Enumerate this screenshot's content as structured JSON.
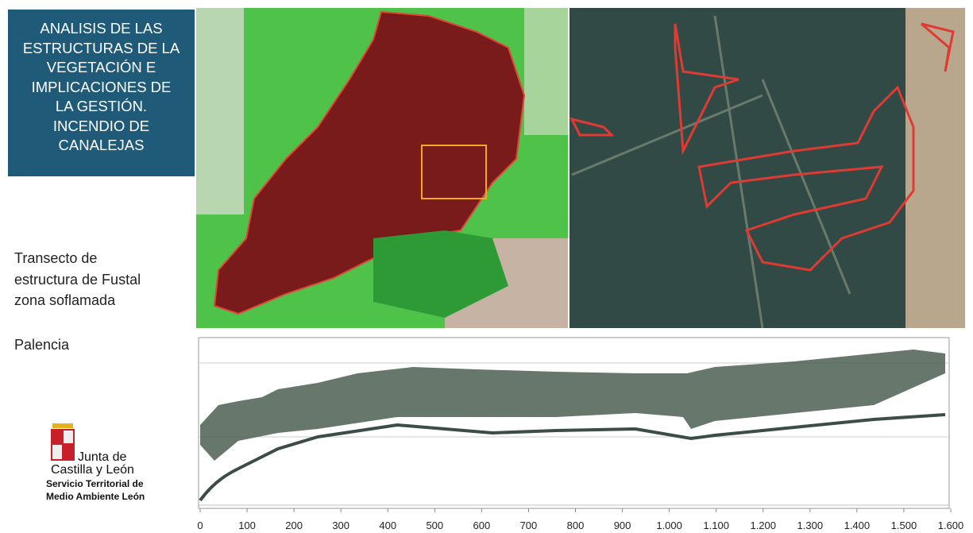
{
  "title_box": {
    "lines": [
      "ANALISIS DE LAS",
      "ESTRUCTURAS DE LA",
      "VEGETACIÓN E",
      "IMPLICACIONES DE",
      "LA GESTIÓN.",
      "INCENDIO DE",
      "CANALEJAS"
    ]
  },
  "sidebar": {
    "description_lines": [
      "Transecto de",
      "estructura de Fustal",
      "zona soflamada"
    ],
    "location": "Palencia"
  },
  "logo": {
    "name_lines": [
      "Junta de",
      "Castilla y León"
    ],
    "office_lines": [
      "Servicio Territorial de",
      "Medio Ambiente León"
    ]
  },
  "transect_chart": {
    "xlim": [
      0,
      1600
    ],
    "xticks": [
      0,
      100,
      200,
      300,
      400,
      500,
      600,
      700,
      800,
      900,
      {
        "value": 1000,
        "label": "1.000"
      },
      {
        "value": 1100,
        "label": "1.100"
      },
      {
        "value": 1200,
        "label": "1.200"
      },
      {
        "value": 1300,
        "label": "1.300"
      },
      {
        "value": 1400,
        "label": "1.400"
      },
      {
        "value": 1500,
        "label": "1.500"
      },
      {
        "value": 1600,
        "label": "1.600"
      }
    ]
  }
}
